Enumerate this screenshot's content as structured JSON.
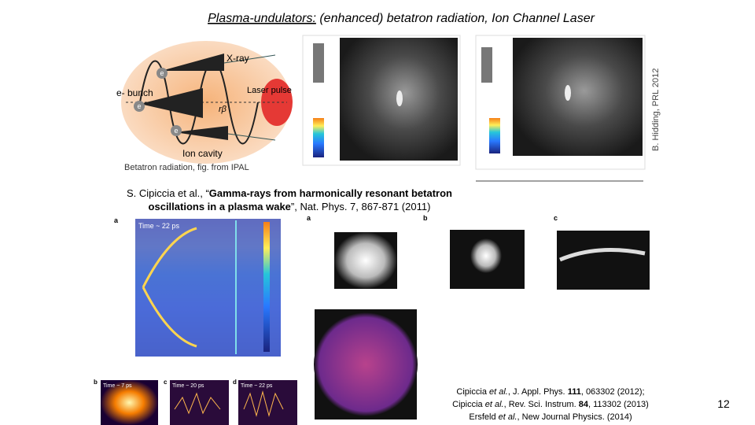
{
  "header": {
    "title": [
      {
        "text": "Plasma-undulators:",
        "style": "underline"
      },
      {
        "text": " (enhanced) betatron radiation, Ion Channel Laser",
        "style": "normal"
      }
    ]
  },
  "figure_top": {
    "labels": {
      "xray": "X-ray",
      "bunch": "e- bunch",
      "laser": "Laser pulse",
      "cavity": "Ion cavity",
      "electron": "e",
      "radius": "rβ"
    },
    "caption": "Betatron radiation, fig. from IPAL",
    "credit": "B. Hidding, PRL 2012"
  },
  "reference_main": [
    [
      {
        "text": "S. Cipiccia et al., “",
        "style": "normal"
      },
      {
        "text": "Gamma-rays from harmonically resonant betatron",
        "style": "bold"
      }
    ],
    [
      {
        "text": "oscillations in a plasma wake",
        "style": "bold"
      },
      {
        "text": "”, Nat. Phys. 7, 867-871 (2011)",
        "style": "normal"
      }
    ]
  ],
  "figure_bottom": {
    "panel_labels": [
      "a",
      "b",
      "c",
      "d"
    ],
    "time_labels": [
      "Time ~ 22 ps",
      "Time ~ 7 ps",
      "Time ~ 20 ps",
      "Time ~ 22 ps"
    ]
  },
  "references": [
    [
      {
        "text": "Cipiccia ",
        "style": "normal"
      },
      {
        "text": "et al.",
        "style": "italic"
      },
      {
        "text": ", J. Appl. Phys. ",
        "style": "normal"
      },
      {
        "text": "111",
        "style": "bold"
      },
      {
        "text": ", 063302 (2012);",
        "style": "normal"
      }
    ],
    [
      {
        "text": "Cipiccia ",
        "style": "normal"
      },
      {
        "text": "et al.",
        "style": "italic"
      },
      {
        "text": ", Rev. Sci. Instrum. ",
        "style": "normal"
      },
      {
        "text": "84",
        "style": "bold"
      },
      {
        "text": ", 113302 (2013)",
        "style": "normal"
      }
    ],
    [
      {
        "text": "Ersfeld ",
        "style": "normal"
      },
      {
        "text": "et al.",
        "style": "italic"
      },
      {
        "text": ", New Journal Physics. (2014)",
        "style": "normal"
      }
    ]
  ],
  "page_number": "12"
}
